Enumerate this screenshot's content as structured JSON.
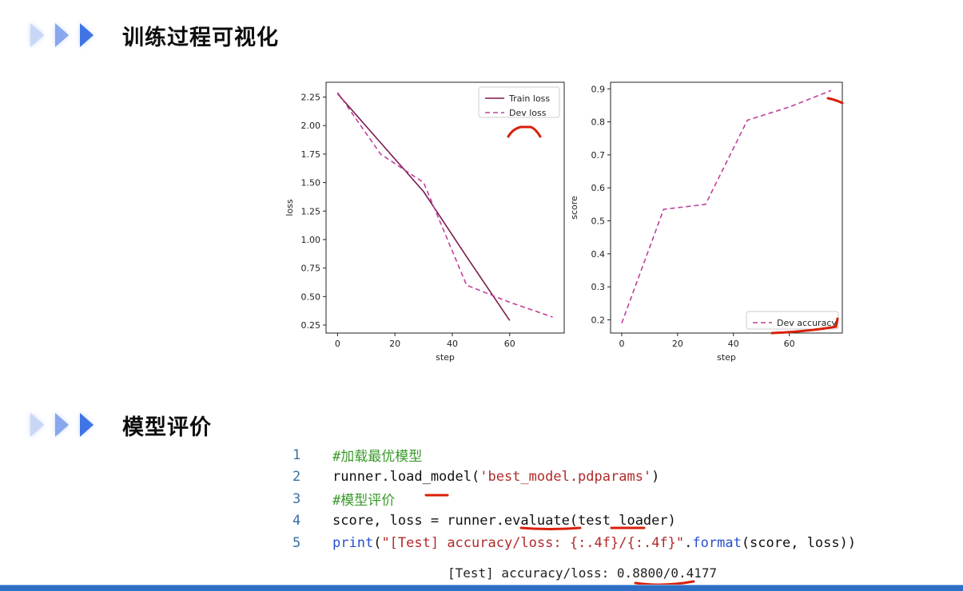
{
  "sections": [
    {
      "title": "训练过程可视化"
    },
    {
      "title": "模型评价"
    }
  ],
  "colors": {
    "train": "#7a1a4e",
    "dev": "#c0409a",
    "annotation": "#d8200a",
    "accent": "#2b63d8"
  },
  "chart_data": [
    {
      "type": "line",
      "xlabel": "step",
      "ylabel": "loss",
      "xticks": [
        0,
        20,
        40,
        60
      ],
      "yticks": [
        "0.25",
        "0.50",
        "0.75",
        "1.00",
        "1.25",
        "1.50",
        "1.75",
        "2.00",
        "2.25"
      ],
      "xlim": [
        -4,
        79
      ],
      "ylim": [
        0.18,
        2.38
      ],
      "legend_position": "top-right",
      "series": [
        {
          "name": "Train loss",
          "style": "solid",
          "x": [
            0,
            15,
            30,
            45,
            60
          ],
          "y": [
            2.28,
            1.85,
            1.42,
            0.85,
            0.29
          ]
        },
        {
          "name": "Dev loss",
          "style": "dashed",
          "x": [
            0,
            15,
            30,
            45,
            60,
            75
          ],
          "y": [
            2.29,
            1.75,
            1.5,
            0.6,
            0.45,
            0.32
          ]
        }
      ]
    },
    {
      "type": "line",
      "xlabel": "step",
      "ylabel": "score",
      "xticks": [
        0,
        20,
        40,
        60
      ],
      "yticks": [
        "0.2",
        "0.3",
        "0.4",
        "0.5",
        "0.6",
        "0.7",
        "0.8",
        "0.9"
      ],
      "xlim": [
        -4,
        79
      ],
      "ylim": [
        0.16,
        0.92
      ],
      "legend_position": "bottom-right",
      "series": [
        {
          "name": "Dev accuracy",
          "style": "dashed",
          "x": [
            0,
            15,
            30,
            45,
            60,
            75
          ],
          "y": [
            0.19,
            0.535,
            0.55,
            0.805,
            0.845,
            0.895
          ]
        }
      ]
    }
  ],
  "code": [
    {
      "num": "1",
      "parts": [
        {
          "t": "#加载最优模型",
          "c": "cm"
        }
      ]
    },
    {
      "num": "2",
      "parts": [
        {
          "t": "runner.load_model(",
          "c": ""
        },
        {
          "t": "'best_model.pdparams'",
          "c": "str"
        },
        {
          "t": ")",
          "c": ""
        }
      ]
    },
    {
      "num": "3",
      "parts": [
        {
          "t": "#模型评价",
          "c": "cm"
        }
      ]
    },
    {
      "num": "4",
      "parts": [
        {
          "t": "score, loss = runner.evaluate(test_loader)",
          "c": ""
        }
      ]
    },
    {
      "num": "5",
      "parts": [
        {
          "t": "print",
          "c": "kw"
        },
        {
          "t": "(",
          "c": ""
        },
        {
          "t": "\"[Test] accuracy/loss: {:.4f}/{:.4f}\"",
          "c": "str"
        },
        {
          "t": ".",
          "c": ""
        },
        {
          "t": "format",
          "c": "kw"
        },
        {
          "t": "(score, loss))",
          "c": ""
        }
      ]
    }
  ],
  "output": "[Test] accuracy/loss: 0.8800/0.4177"
}
